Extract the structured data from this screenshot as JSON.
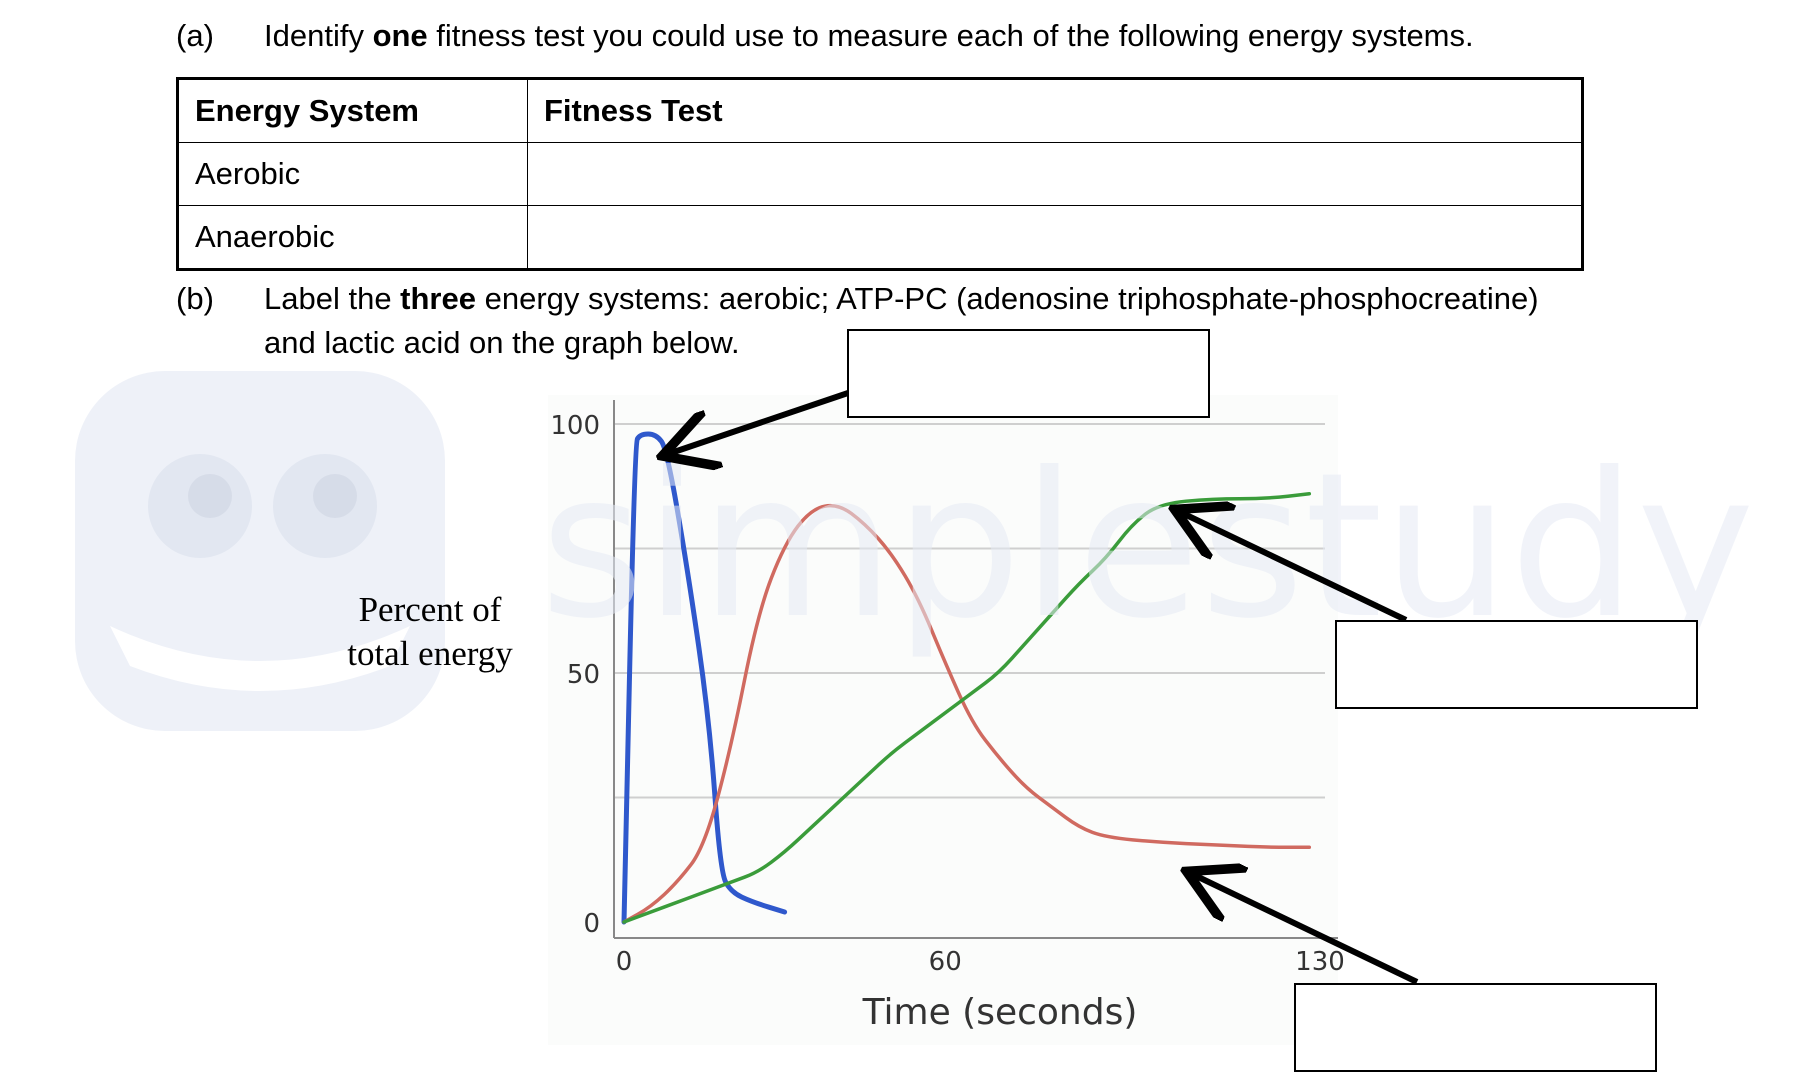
{
  "question_a": {
    "number": "(a)",
    "text_before": "Identify ",
    "text_bold": "one",
    "text_after": " fitness test you could use to measure each of the following energy systems."
  },
  "table": {
    "headers": [
      "Energy System",
      "Fitness Test"
    ],
    "rows": [
      {
        "system": "Aerobic",
        "test": ""
      },
      {
        "system": "Anaerobic",
        "test": ""
      }
    ]
  },
  "question_b": {
    "number": "(b)",
    "line1_before": "Label the ",
    "line1_bold": "three",
    "line1_after": " energy systems: aerobic; ATP-PC (adenosine triphosphate-phosphocreatine)",
    "line2": "and lactic acid on the graph below."
  },
  "label_boxes": [
    {
      "id": "label-box-atp-pc",
      "value": ""
    },
    {
      "id": "label-box-aerobic",
      "value": ""
    },
    {
      "id": "label-box-lactic",
      "value": ""
    }
  ],
  "watermark": {
    "text": "simplestudy",
    "icon": "owl-logo-icon",
    "color": "#e6ebf5"
  },
  "chart_data": {
    "type": "line",
    "xlabel": "Time (seconds)",
    "ylabel": "Percent of total energy",
    "x_ticks": [
      0,
      60,
      130
    ],
    "y_ticks": [
      0,
      50,
      100
    ],
    "xlim": [
      0,
      130
    ],
    "ylim": [
      0,
      100
    ],
    "grid": true,
    "series": [
      {
        "color": "#2f58cc",
        "x": [
          0,
          2,
          3,
          6,
          8,
          12,
          16,
          18,
          20,
          24,
          30
        ],
        "y": [
          0,
          96,
          98,
          98,
          95,
          70,
          40,
          10,
          6,
          4,
          2
        ]
      },
      {
        "color": "#d06a60",
        "x": [
          0,
          5,
          10,
          15,
          20,
          25,
          30,
          35,
          40,
          45,
          50,
          55,
          60,
          65,
          70,
          75,
          80,
          85,
          90,
          100,
          110,
          120,
          128
        ],
        "y": [
          0,
          3,
          8,
          15,
          35,
          62,
          76,
          83,
          84,
          80,
          74,
          65,
          52,
          40,
          33,
          27,
          23,
          19,
          17,
          16,
          15.5,
          15,
          15
        ]
      },
      {
        "color": "#3a9c3a",
        "x": [
          0,
          5,
          10,
          15,
          20,
          25,
          30,
          35,
          40,
          45,
          50,
          55,
          60,
          65,
          70,
          75,
          80,
          85,
          90,
          95,
          100,
          110,
          120,
          128
        ],
        "y": [
          0,
          2,
          4,
          6,
          8,
          10,
          14,
          19,
          24,
          29,
          34,
          38,
          42,
          46,
          50,
          56,
          62,
          68,
          73,
          80,
          84,
          85,
          85,
          86
        ]
      }
    ]
  }
}
